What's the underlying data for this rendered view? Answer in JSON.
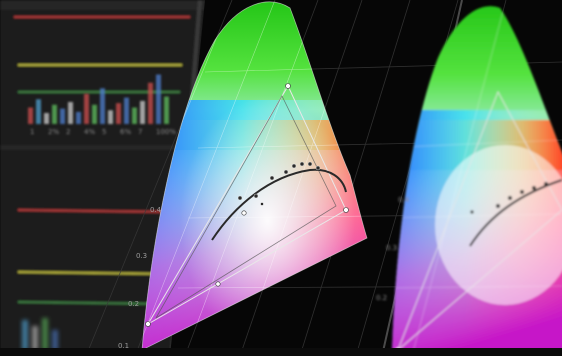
{
  "theme": {
    "background": "#0a0a0a",
    "left_panel": "#2b2b2b",
    "left_panel_dark": "#1d1d1d",
    "line_red": "#b03a3a",
    "line_yellow": "#b6b23c",
    "line_green": "#3e7d42",
    "locus_outline": "#d8d8d8",
    "curve_color": "#3a3a3a"
  },
  "left_panel": {
    "histogram_bars": [
      {
        "color": "#d05050",
        "height": 0.3
      },
      {
        "color": "#50a0d0",
        "height": 0.45
      },
      {
        "color": "#d0d0d0",
        "height": 0.2
      },
      {
        "color": "#60c060",
        "height": 0.35
      },
      {
        "color": "#5080d0",
        "height": 0.28
      },
      {
        "color": "#d0d0d0",
        "height": 0.4
      },
      {
        "color": "#5080d0",
        "height": 0.22
      },
      {
        "color": "#d05050",
        "height": 0.55
      },
      {
        "color": "#60c060",
        "height": 0.35
      },
      {
        "color": "#5080d0",
        "height": 0.65
      },
      {
        "color": "#d0d0d0",
        "height": 0.25
      },
      {
        "color": "#d05050",
        "height": 0.38
      },
      {
        "color": "#5080d0",
        "height": 0.48
      },
      {
        "color": "#60c060",
        "height": 0.3
      },
      {
        "color": "#d0d0d0",
        "height": 0.42
      },
      {
        "color": "#d05050",
        "height": 0.75
      },
      {
        "color": "#5080d0",
        "height": 0.9
      },
      {
        "color": "#60c060",
        "height": 0.5
      }
    ],
    "bar_labels": [
      "1",
      "2%",
      "2",
      "4%",
      "5",
      "6%",
      "7",
      "100%"
    ]
  },
  "primary_diagram": {
    "tick_labels": [
      "0.4",
      "0.3",
      "0.2",
      "0.1"
    ]
  },
  "secondary_diagram": {
    "tick_labels": [
      "0.4",
      "0.3",
      "0.2"
    ]
  }
}
